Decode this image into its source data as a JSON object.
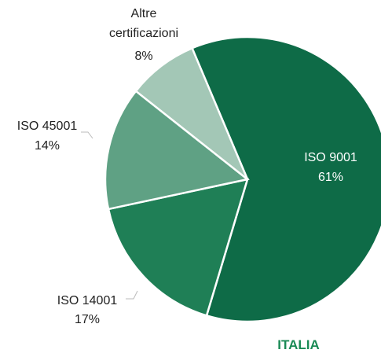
{
  "chart_data": {
    "type": "pie",
    "title": "ITALIA",
    "categories": [
      "ISO 9001",
      "ISO 14001",
      "ISO 45001",
      "Altre certificazioni"
    ],
    "values": [
      61,
      17,
      14,
      8
    ],
    "value_labels": [
      "61%",
      "17%",
      "14%",
      "8%"
    ],
    "colors": [
      "#0e6b47",
      "#1f7f56",
      "#5fa184",
      "#a3c7b6"
    ]
  }
}
